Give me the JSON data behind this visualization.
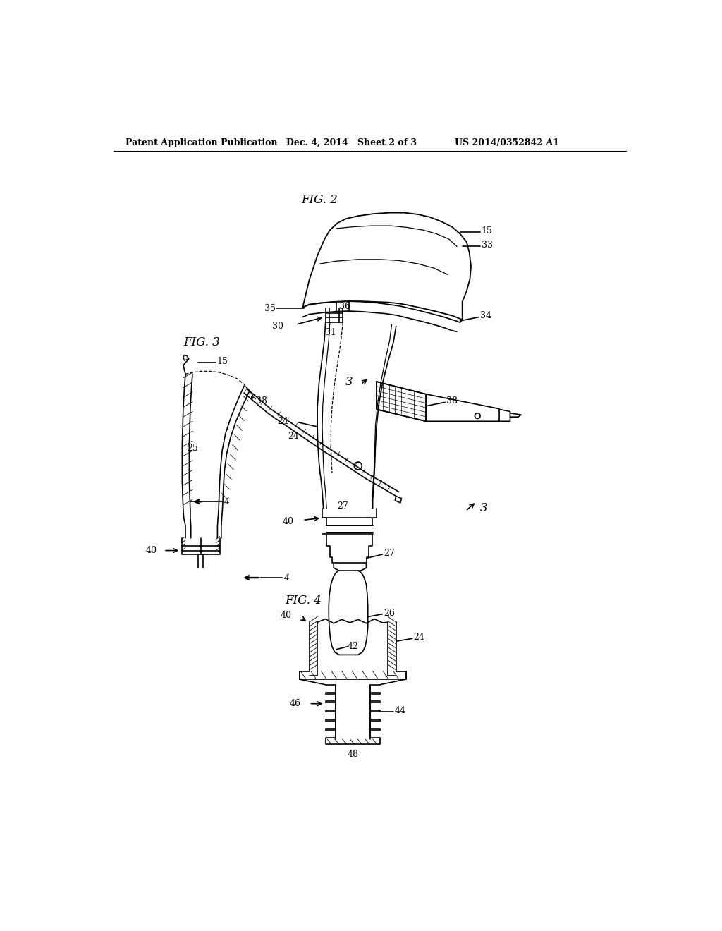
{
  "background_color": "#ffffff",
  "header_left": "Patent Application Publication",
  "header_mid": "Dec. 4, 2014   Sheet 2 of 3",
  "header_right": "US 2014/0352842 A1",
  "fig2_title": "FIG. 2",
  "fig3_title": "FIG. 3",
  "fig4_title": "FIG. 4",
  "lc": "#000000",
  "lw": 1.2,
  "lfs": 9,
  "tfs": 12
}
